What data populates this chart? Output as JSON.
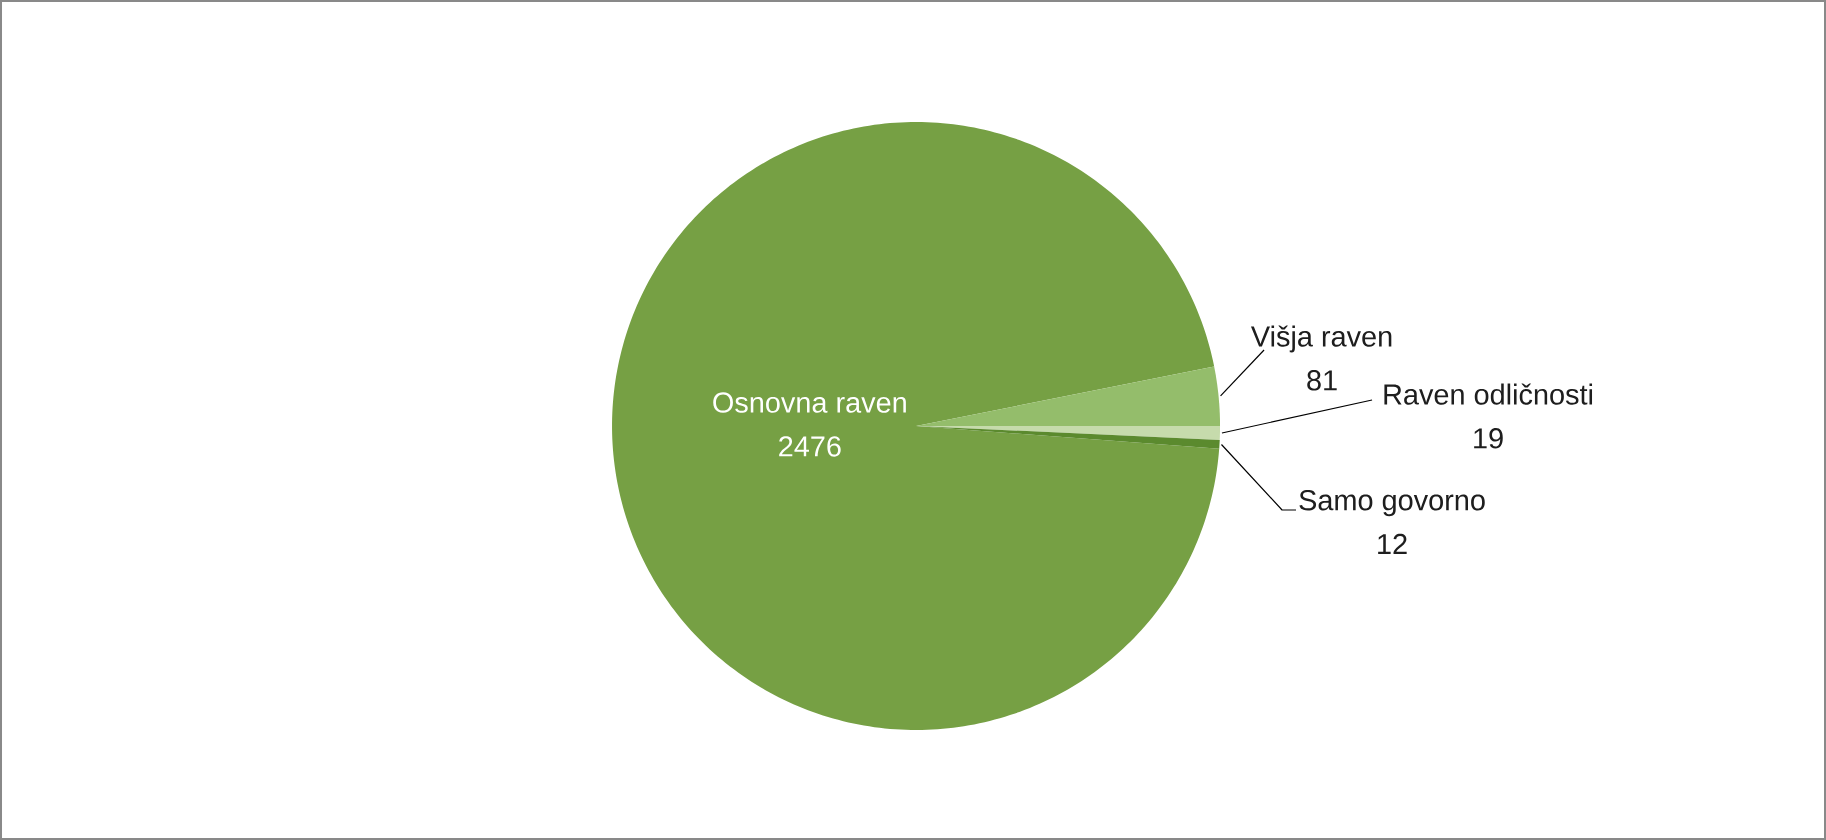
{
  "chart_data": {
    "type": "pie",
    "categories": [
      "Osnovna raven",
      "Višja raven",
      "Raven odličnosti",
      "Samo govorno"
    ],
    "values": [
      2476,
      81,
      19,
      12
    ],
    "colors": [
      "#76a044",
      "#94bd6b",
      "#c6dbac",
      "#5b8a2e"
    ],
    "data_labels": true
  }
}
